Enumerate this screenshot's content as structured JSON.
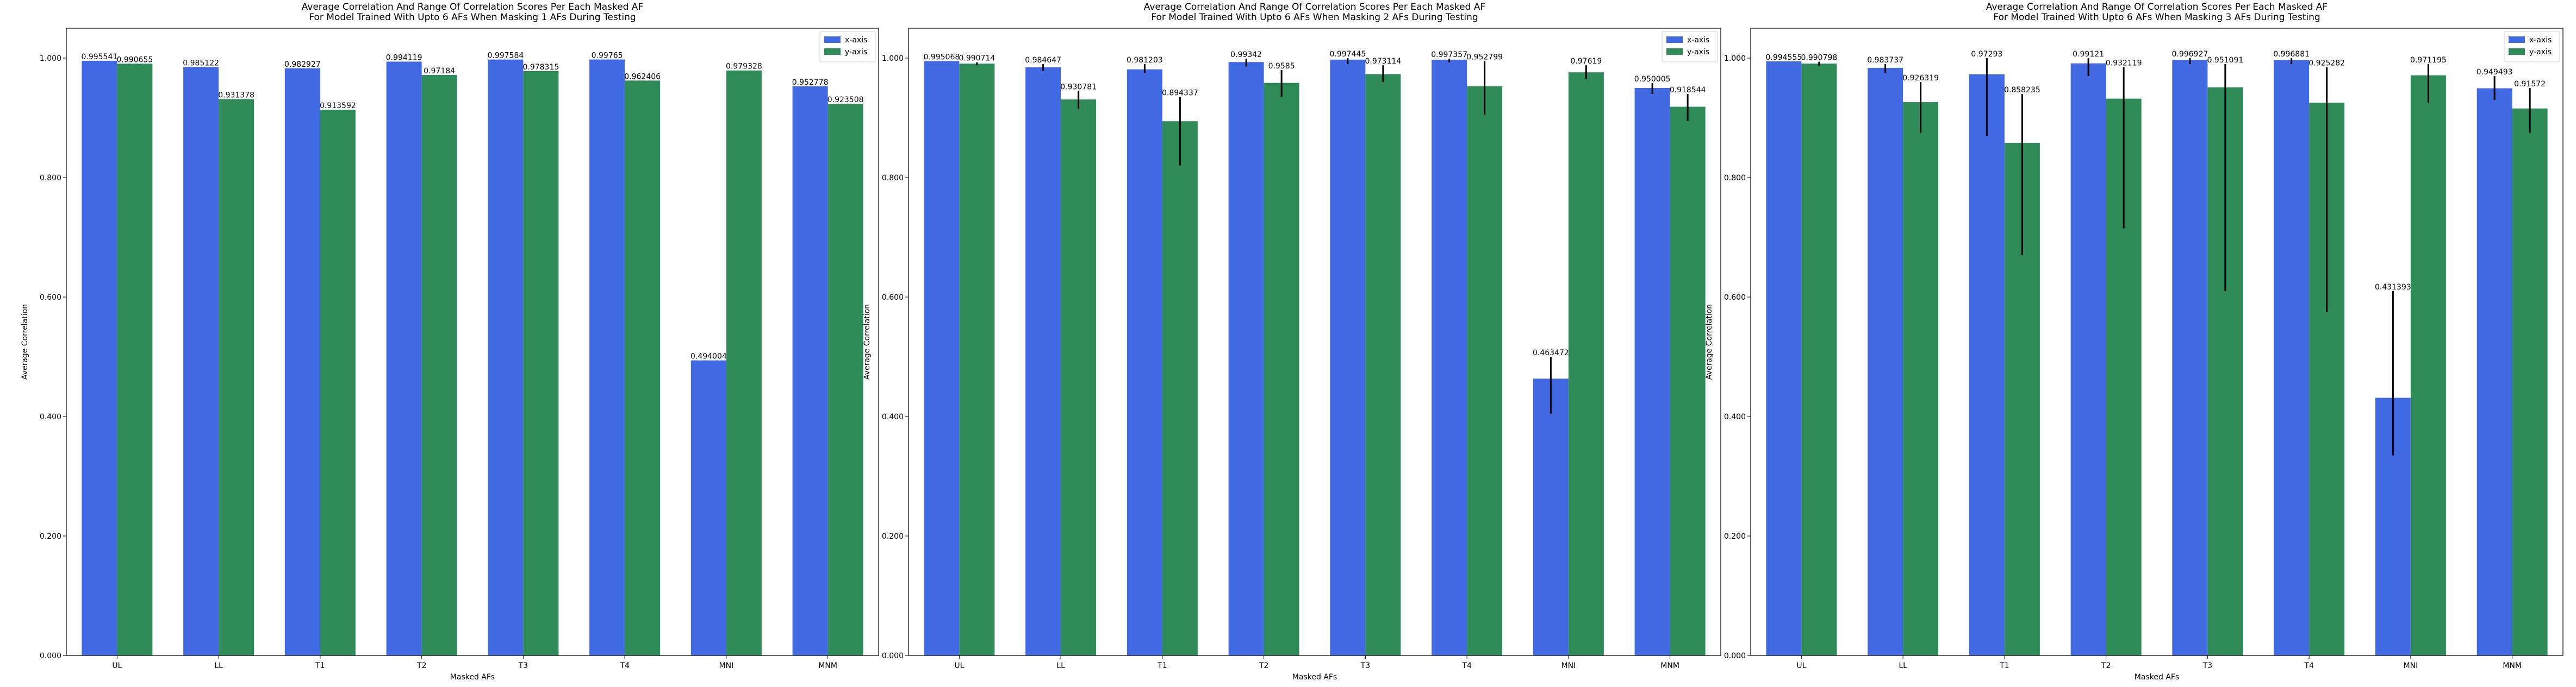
{
  "chart_data": [
    {
      "type": "bar",
      "title": "Average Correlation And Range Of Correlation Scores Per Each Masked AF\nFor Model Trained With Upto 6 AFs When Masking 1 AFs During Testing",
      "xlabel": "Masked AFs",
      "ylabel": "Average Correlation",
      "ylim": [
        0,
        1.05
      ],
      "yticks": [
        0,
        0.2,
        0.4,
        0.6,
        0.8,
        1.0
      ],
      "ytick_labels": [
        "0.000",
        "0.200",
        "0.400",
        "0.600",
        "0.800",
        "1.000"
      ],
      "categories": [
        "UL",
        "LL",
        "T1",
        "T2",
        "T3",
        "T4",
        "MNI",
        "MNM"
      ],
      "legend_position": "top-right",
      "grid": false,
      "series": [
        {
          "name": "x-axis",
          "color": "#4169E1",
          "values": [
            0.995541,
            0.985122,
            0.982927,
            0.994119,
            0.997584,
            0.99765,
            0.494004,
            0.952778
          ],
          "labels": [
            "0.995541",
            "0.985122",
            "0.982927",
            "0.994119",
            "0.997584",
            "0.99765",
            "0.494004",
            "0.952778"
          ],
          "err_low": [
            null,
            null,
            null,
            null,
            null,
            null,
            null,
            null
          ],
          "err_high": [
            null,
            null,
            null,
            null,
            null,
            null,
            null,
            null
          ]
        },
        {
          "name": "y-axis",
          "color": "#2E8B57",
          "values": [
            0.990655,
            0.931378,
            0.913592,
            0.97184,
            0.978315,
            0.962406,
            0.979328,
            0.923508
          ],
          "labels": [
            "0.990655",
            "0.931378",
            "0.913592",
            "0.97184",
            "0.978315",
            "0.962406",
            "0.979328",
            "0.923508"
          ],
          "err_low": [
            null,
            null,
            null,
            null,
            null,
            null,
            null,
            null
          ],
          "err_high": [
            null,
            null,
            null,
            null,
            null,
            null,
            null,
            null
          ]
        }
      ]
    },
    {
      "type": "bar",
      "title": "Average Correlation And Range Of Correlation Scores Per Each Masked AF\nFor Model Trained With Upto 6 AFs When Masking 2 AFs During Testing",
      "xlabel": "Masked AFs",
      "ylabel": "Average Correlation",
      "ylim": [
        0,
        1.05
      ],
      "yticks": [
        0,
        0.2,
        0.4,
        0.6,
        0.8,
        1.0
      ],
      "ytick_labels": [
        "0.000",
        "0.200",
        "0.400",
        "0.600",
        "0.800",
        "1.000"
      ],
      "categories": [
        "UL",
        "LL",
        "T1",
        "T2",
        "T3",
        "T4",
        "MNI",
        "MNM"
      ],
      "legend_position": "top-right",
      "grid": false,
      "series": [
        {
          "name": "x-axis",
          "color": "#4169E1",
          "values": [
            0.995068,
            0.984647,
            0.981203,
            0.99342,
            0.997445,
            0.997357,
            0.463472,
            0.950005
          ],
          "labels": [
            "0.995068",
            "0.984647",
            "0.981203",
            "0.99342",
            "0.997445",
            "0.997357",
            "0.463472",
            "0.950005"
          ],
          "err_low": [
            null,
            0.979,
            0.975,
            0.986,
            0.99,
            0.993,
            0.405,
            0.94
          ],
          "err_high": [
            null,
            0.99,
            0.99,
            0.999,
            1.0,
            0.999,
            0.5,
            0.958
          ]
        },
        {
          "name": "y-axis",
          "color": "#2E8B57",
          "values": [
            0.990714,
            0.930781,
            0.894337,
            0.9585,
            0.973114,
            0.952799,
            0.97619,
            0.918544
          ],
          "labels": [
            "0.990714",
            "0.930781",
            "0.894337",
            "0.9585",
            "0.973114",
            "0.952799",
            "0.97619",
            "0.918544"
          ],
          "err_low": [
            0.988,
            0.915,
            0.82,
            0.935,
            0.96,
            0.905,
            0.965,
            0.895
          ],
          "err_high": [
            0.993,
            0.945,
            0.935,
            0.98,
            0.988,
            0.995,
            0.988,
            0.94
          ]
        }
      ]
    },
    {
      "type": "bar",
      "title": "Average Correlation And Range Of Correlation Scores Per Each Masked AF\nFor Model Trained With Upto 6 AFs When Masking 3 AFs During Testing",
      "xlabel": "Masked AFs",
      "ylabel": "Average Correlation",
      "ylim": [
        0,
        1.05
      ],
      "yticks": [
        0,
        0.2,
        0.4,
        0.6,
        0.8,
        1.0
      ],
      "ytick_labels": [
        "0.000",
        "0.200",
        "0.400",
        "0.600",
        "0.800",
        "1.000"
      ],
      "categories": [
        "UL",
        "LL",
        "T1",
        "T2",
        "T3",
        "T4",
        "MNI",
        "MNM"
      ],
      "legend_position": "top-right",
      "grid": false,
      "series": [
        {
          "name": "x-axis",
          "color": "#4169E1",
          "values": [
            0.994555,
            0.983737,
            0.97293,
            0.99121,
            0.996927,
            0.996881,
            0.431393,
            0.949493
          ],
          "labels": [
            "0.994555",
            "0.983737",
            "0.97293",
            "0.99121",
            "0.996927",
            "0.996881",
            "0.431393",
            "0.949493"
          ],
          "err_low": [
            null,
            0.975,
            0.87,
            0.97,
            0.99,
            0.99,
            0.335,
            0.93
          ],
          "err_high": [
            null,
            0.99,
            1.0,
            1.0,
            1.0,
            1.0,
            0.61,
            0.97
          ]
        },
        {
          "name": "y-axis",
          "color": "#2E8B57",
          "values": [
            0.990798,
            0.926319,
            0.858235,
            0.932119,
            0.951091,
            0.925282,
            0.971195,
            0.91572
          ],
          "labels": [
            "0.990798",
            "0.926319",
            "0.858235",
            "0.932119",
            "0.951091",
            "0.925282",
            "0.971195",
            "0.91572"
          ],
          "err_low": [
            0.987,
            0.875,
            0.67,
            0.715,
            0.61,
            0.575,
            0.925,
            0.875
          ],
          "err_high": [
            0.994,
            0.96,
            0.94,
            0.985,
            0.99,
            0.985,
            0.99,
            0.95
          ]
        }
      ]
    }
  ]
}
